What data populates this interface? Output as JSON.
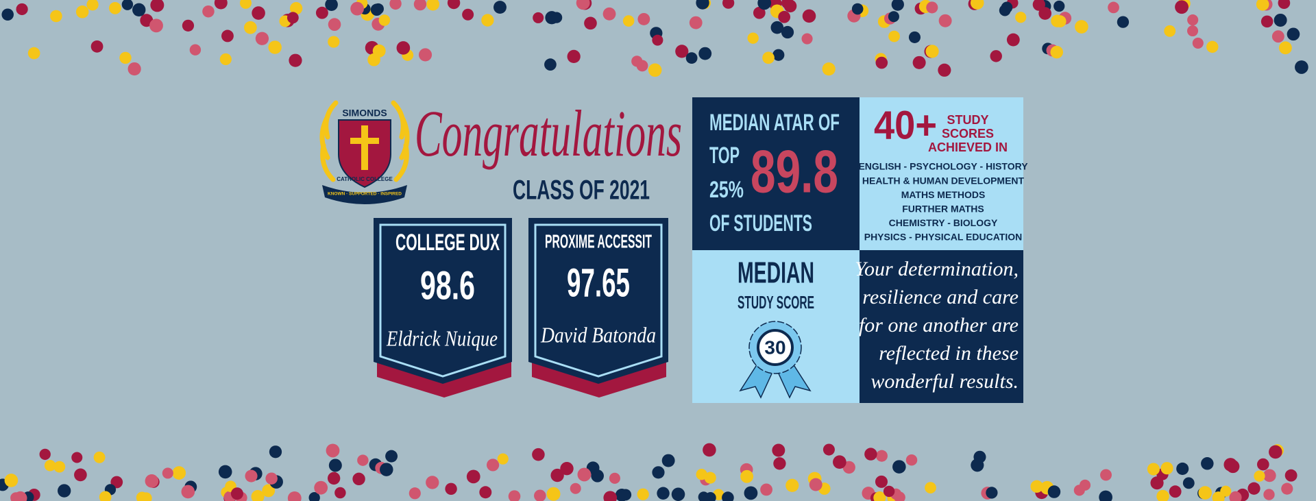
{
  "header": {
    "title": "Congratulations",
    "subtitle": "CLASS OF 2021"
  },
  "logo": {
    "name": "SIMONDS",
    "subname": "CATHOLIC COLLEGE",
    "motto": "KNOWN · SUPPORTED · INSPIRED"
  },
  "awards": [
    {
      "title": "COLLEGE DUX",
      "score": "98.6",
      "student": "Eldrick Nuique"
    },
    {
      "title": "PROXIME ACCESSIT",
      "score": "97.65",
      "student": "David Batonda"
    }
  ],
  "atar": {
    "line1": "MEDIAN ATAR OF",
    "line2": "TOP",
    "line3": "25%",
    "value": "89.8",
    "line4": "OF STUDENTS"
  },
  "study_scores": {
    "count": "40+",
    "caption": [
      "STUDY",
      "SCORES",
      "ACHIEVED IN"
    ],
    "subjects": [
      "ENGLISH - PSYCHOLOGY - HISTORY",
      "HEALTH &  HUMAN DEVELOPMENT",
      "MATHS METHODS",
      "FURTHER MATHS",
      "CHEMISTRY - BIOLOGY",
      "PHYSICS - PHYSICAL EDUCATION"
    ]
  },
  "median_study_score": {
    "title": "MEDIAN",
    "subtitle": "STUDY SCORE",
    "value": "30"
  },
  "quote": [
    "Your determination,",
    "resilience and care",
    "for one another are",
    "reflected in these",
    "wonderful results."
  ]
}
